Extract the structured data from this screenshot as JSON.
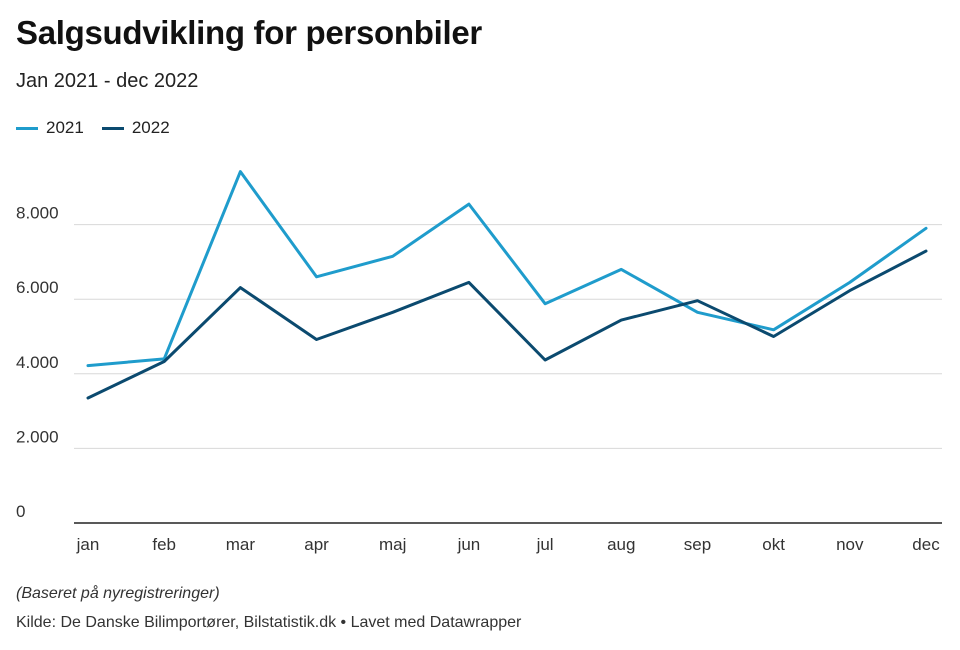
{
  "header": {
    "title": "Salgsudvikling for personbiler",
    "subtitle": "Jan 2021 - dec 2022"
  },
  "footer": {
    "note": "(Baseret på nyregistreringer)",
    "source": "Kilde: De Danske Bilimportører, Bilstatistik.dk • Lavet med Datawrapper"
  },
  "colors": {
    "series_2021": "#1f9ccc",
    "series_2022": "#0b4a6f",
    "grid": "#d8d8d8",
    "axis": "#222222"
  },
  "chart_data": {
    "type": "line",
    "title": "Salgsudvikling for personbiler",
    "subtitle": "Jan 2021 - dec 2022",
    "xlabel": "",
    "ylabel": "",
    "categories": [
      "jan",
      "feb",
      "mar",
      "apr",
      "maj",
      "jun",
      "jul",
      "aug",
      "sep",
      "okt",
      "nov",
      "dec"
    ],
    "series": [
      {
        "name": "2021",
        "color": "#1f9ccc",
        "values": [
          4220,
          4400,
          9420,
          6600,
          7150,
          8550,
          5880,
          6800,
          5650,
          5180,
          6450,
          7900
        ]
      },
      {
        "name": "2022",
        "color": "#0b4a6f",
        "values": [
          3350,
          4330,
          6310,
          4920,
          5650,
          6450,
          4370,
          5440,
          5960,
          5000,
          6230,
          7290
        ]
      }
    ],
    "ylim": [
      0,
      10000
    ],
    "yticks": [
      0,
      2000,
      4000,
      6000,
      8000
    ],
    "ytick_labels": [
      "0",
      "2.000",
      "4.000",
      "6.000",
      "8.000"
    ],
    "grid": true,
    "legend_position": "top-left"
  }
}
